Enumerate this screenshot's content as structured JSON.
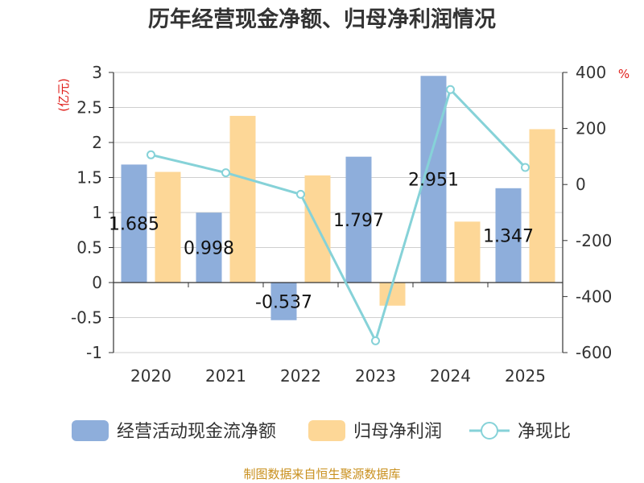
{
  "chart_data": {
    "type": "bar+line",
    "title": "历年经营现金净额、归母净利润情况",
    "categories": [
      "2020",
      "2021",
      "2022",
      "2023",
      "2024",
      "2025"
    ],
    "series": [
      {
        "name": "经营活动现金流净额",
        "type": "bar",
        "axis": "left",
        "color": "#8eaedb",
        "values": [
          1.685,
          0.998,
          -0.537,
          1.797,
          2.951,
          1.347
        ],
        "labels": [
          "1.685",
          "0.998",
          "-0.537",
          "1.797",
          "2.951",
          "1.347"
        ]
      },
      {
        "name": "归母净利润",
        "type": "bar",
        "axis": "left",
        "color": "#fdd797",
        "values": [
          1.58,
          2.38,
          1.53,
          -0.33,
          0.87,
          2.19
        ]
      },
      {
        "name": "净现比",
        "type": "line",
        "axis": "right",
        "color": "#86d2d8",
        "values": [
          106,
          42,
          -35,
          -558,
          339,
          61
        ]
      }
    ],
    "left_axis": {
      "unit": "(亿元)",
      "min": -1,
      "max": 3,
      "ticks": [
        3,
        2.5,
        2,
        1.5,
        1,
        0.5,
        0,
        -0.5,
        -1
      ],
      "tick_labels": [
        "3",
        "2.5",
        "2",
        "1.5",
        "1",
        "0.5",
        "0",
        "-0.5",
        "-1"
      ]
    },
    "right_axis": {
      "unit": "%",
      "min": -600,
      "max": 400,
      "ticks": [
        400,
        200,
        0,
        -200,
        -400,
        -600
      ],
      "tick_labels": [
        "400",
        "200",
        "0",
        "-200",
        "-400",
        "-600"
      ]
    },
    "legend_position": "bottom",
    "grid": true
  },
  "footer": {
    "source": "制图数据来自恒生聚源数据库"
  }
}
